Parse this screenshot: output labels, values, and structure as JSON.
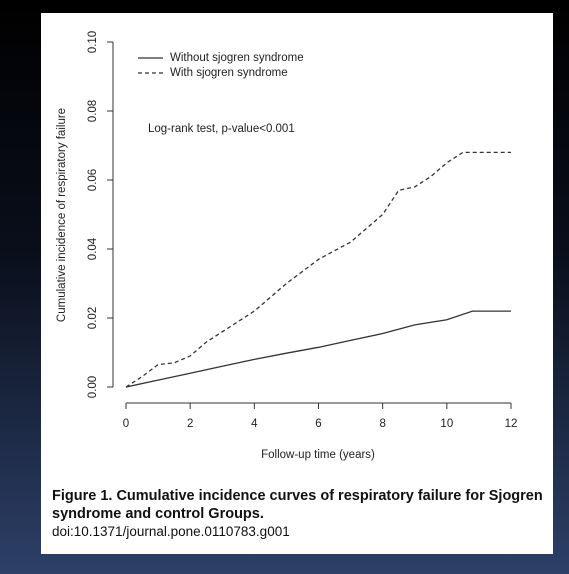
{
  "chart_data": {
    "type": "line",
    "xlabel": "Follow-up time (years)",
    "ylabel": "Cumulative incidence of  respiratory failure",
    "annotation": "Log-rank test, p-value<0.001",
    "xlim": [
      0,
      12
    ],
    "xticks": [
      0,
      2,
      4,
      6,
      8,
      10,
      12
    ],
    "ylim": [
      0,
      0.1
    ],
    "yticks": [
      {
        "value": 0,
        "label": "0.00"
      },
      {
        "value": 0.02,
        "label": "0.02"
      },
      {
        "value": 0.04,
        "label": "0.04"
      },
      {
        "value": 0.06,
        "label": "0.06"
      },
      {
        "value": 0.08,
        "label": "0.08"
      },
      {
        "value": 0.1,
        "label": "0.10"
      }
    ],
    "legend": "top-left",
    "series": [
      {
        "name": "Without sjogren syndrome",
        "color": "#333333",
        "linestyle": "solid",
        "x": [
          0,
          1,
          2,
          3,
          4,
          5,
          6,
          7,
          8,
          9,
          10,
          10.8,
          12
        ],
        "values": [
          0,
          0.002,
          0.004,
          0.006,
          0.008,
          0.0098,
          0.0115,
          0.0135,
          0.0155,
          0.018,
          0.0195,
          0.022,
          0.022
        ]
      },
      {
        "name": "With sjogren syndrome",
        "color": "#333333",
        "linestyle": "dashed",
        "x": [
          0,
          0.5,
          1,
          1.5,
          2,
          2.5,
          3,
          4,
          5,
          6,
          7,
          8,
          8.5,
          9,
          9.5,
          10,
          10.5,
          12
        ],
        "values": [
          0,
          0.003,
          0.0065,
          0.007,
          0.009,
          0.013,
          0.016,
          0.022,
          0.03,
          0.037,
          0.042,
          0.05,
          0.057,
          0.058,
          0.061,
          0.065,
          0.068,
          0.068
        ]
      }
    ]
  },
  "caption": {
    "title": "Figure 1. Cumulative incidence curves of respiratory failure for Sjogren syndrome and control Groups.",
    "doi": "doi:10.1371/journal.pone.0110783.g001"
  }
}
